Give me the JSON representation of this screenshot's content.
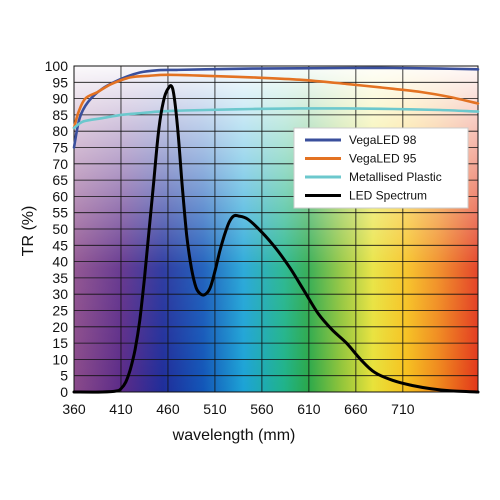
{
  "chart_data": {
    "type": "line",
    "xlabel": "wavelength (mm)",
    "ylabel": "TR (%)",
    "xlim": [
      360,
      790
    ],
    "ylim": [
      0,
      100
    ],
    "xticks": [
      "360",
      "410",
      "460",
      "510",
      "560",
      "610",
      "660",
      "710"
    ],
    "yticks": [
      "0",
      "5",
      "10",
      "15",
      "20",
      "25",
      "30",
      "35",
      "40",
      "45",
      "50",
      "55",
      "60",
      "65",
      "70",
      "75",
      "80",
      "85",
      "90",
      "95",
      "100"
    ],
    "grid": true,
    "background": "visible-spectrum gradient",
    "legend_position": "upper-right",
    "series": [
      {
        "name": "VegaLED 98",
        "color": "#3a4f9c",
        "points": [
          [
            360,
            75
          ],
          [
            366,
            84
          ],
          [
            375,
            89
          ],
          [
            390,
            93
          ],
          [
            410,
            96
          ],
          [
            430,
            98
          ],
          [
            450,
            98.7
          ],
          [
            470,
            98.8
          ],
          [
            500,
            99
          ],
          [
            550,
            99.2
          ],
          [
            600,
            99.3
          ],
          [
            650,
            99.4
          ],
          [
            700,
            99.4
          ],
          [
            750,
            99.2
          ],
          [
            790,
            99
          ]
        ]
      },
      {
        "name": "VegaLED 95",
        "color": "#e37222",
        "points": [
          [
            360,
            81
          ],
          [
            365,
            86
          ],
          [
            372,
            90
          ],
          [
            385,
            92
          ],
          [
            400,
            94.5
          ],
          [
            420,
            96.5
          ],
          [
            440,
            97
          ],
          [
            460,
            97.3
          ],
          [
            500,
            97
          ],
          [
            550,
            96.5
          ],
          [
            600,
            95.8
          ],
          [
            650,
            94.5
          ],
          [
            700,
            93
          ],
          [
            730,
            92
          ],
          [
            760,
            90.5
          ],
          [
            790,
            88.5
          ]
        ]
      },
      {
        "name": "Metallised Plastic",
        "color": "#6cc8cd",
        "points": [
          [
            360,
            81
          ],
          [
            370,
            83
          ],
          [
            390,
            84
          ],
          [
            410,
            85
          ],
          [
            430,
            85.5
          ],
          [
            450,
            86
          ],
          [
            470,
            86.3
          ],
          [
            500,
            86.5
          ],
          [
            550,
            86.8
          ],
          [
            600,
            87
          ],
          [
            650,
            87
          ],
          [
            700,
            86.8
          ],
          [
            750,
            86.5
          ],
          [
            790,
            86
          ]
        ]
      },
      {
        "name": "LED Spectrum",
        "color": "#000000",
        "points": [
          [
            360,
            0
          ],
          [
            390,
            0
          ],
          [
            405,
            0.3
          ],
          [
            410,
            1
          ],
          [
            415,
            3
          ],
          [
            420,
            7
          ],
          [
            425,
            13
          ],
          [
            430,
            22
          ],
          [
            435,
            35
          ],
          [
            440,
            50
          ],
          [
            445,
            65
          ],
          [
            450,
            80
          ],
          [
            455,
            89
          ],
          [
            460,
            93
          ],
          [
            465,
            93
          ],
          [
            470,
            82
          ],
          [
            475,
            64
          ],
          [
            480,
            48
          ],
          [
            485,
            38
          ],
          [
            490,
            32
          ],
          [
            495,
            30
          ],
          [
            500,
            30
          ],
          [
            505,
            32
          ],
          [
            510,
            37
          ],
          [
            515,
            43
          ],
          [
            520,
            48
          ],
          [
            525,
            52
          ],
          [
            530,
            54
          ],
          [
            535,
            54
          ],
          [
            545,
            53
          ],
          [
            560,
            49
          ],
          [
            575,
            44
          ],
          [
            590,
            38
          ],
          [
            605,
            31
          ],
          [
            620,
            24
          ],
          [
            635,
            19
          ],
          [
            650,
            15
          ],
          [
            665,
            10
          ],
          [
            680,
            6
          ],
          [
            700,
            3.5
          ],
          [
            720,
            2
          ],
          [
            740,
            1
          ],
          [
            760,
            0.4
          ],
          [
            790,
            0
          ]
        ]
      }
    ]
  }
}
